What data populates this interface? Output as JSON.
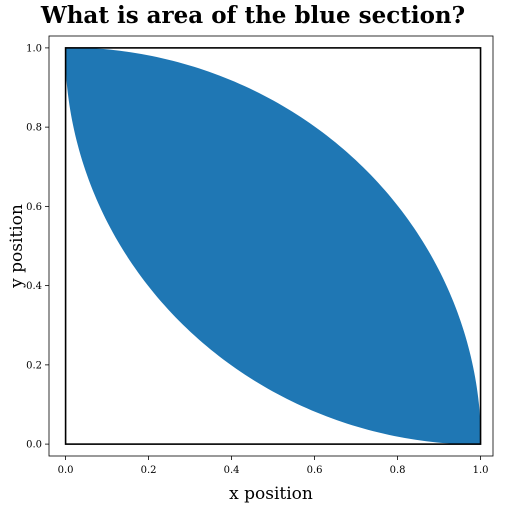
{
  "chart_data": {
    "type": "area",
    "title": "What is area of the blue section?",
    "xlabel": "x position",
    "ylabel": "y position",
    "xlim": [
      -0.04,
      1.03
    ],
    "ylim": [
      -0.03,
      1.03
    ],
    "xticks": [
      0.0,
      0.2,
      0.4,
      0.6,
      0.8,
      1.0
    ],
    "yticks": [
      0.0,
      0.2,
      0.4,
      0.6,
      0.8,
      1.0
    ],
    "xtick_labels": [
      "0.0",
      "0.2",
      "0.4",
      "0.6",
      "0.8",
      "1.0"
    ],
    "ytick_labels": [
      "0.0",
      "0.2",
      "0.4",
      "0.6",
      "0.8",
      "1.0"
    ],
    "square": {
      "x": [
        0,
        1
      ],
      "y": [
        0,
        1
      ],
      "color": "#000000"
    },
    "region": {
      "description_shape": "lens between two quarter circles of radius 1 centered at (0,0) and (1,1)",
      "upper_arc_center": [
        0,
        0
      ],
      "lower_arc_center": [
        1,
        1
      ],
      "radius": 1,
      "color": "#1f77b4"
    },
    "grid": false
  }
}
